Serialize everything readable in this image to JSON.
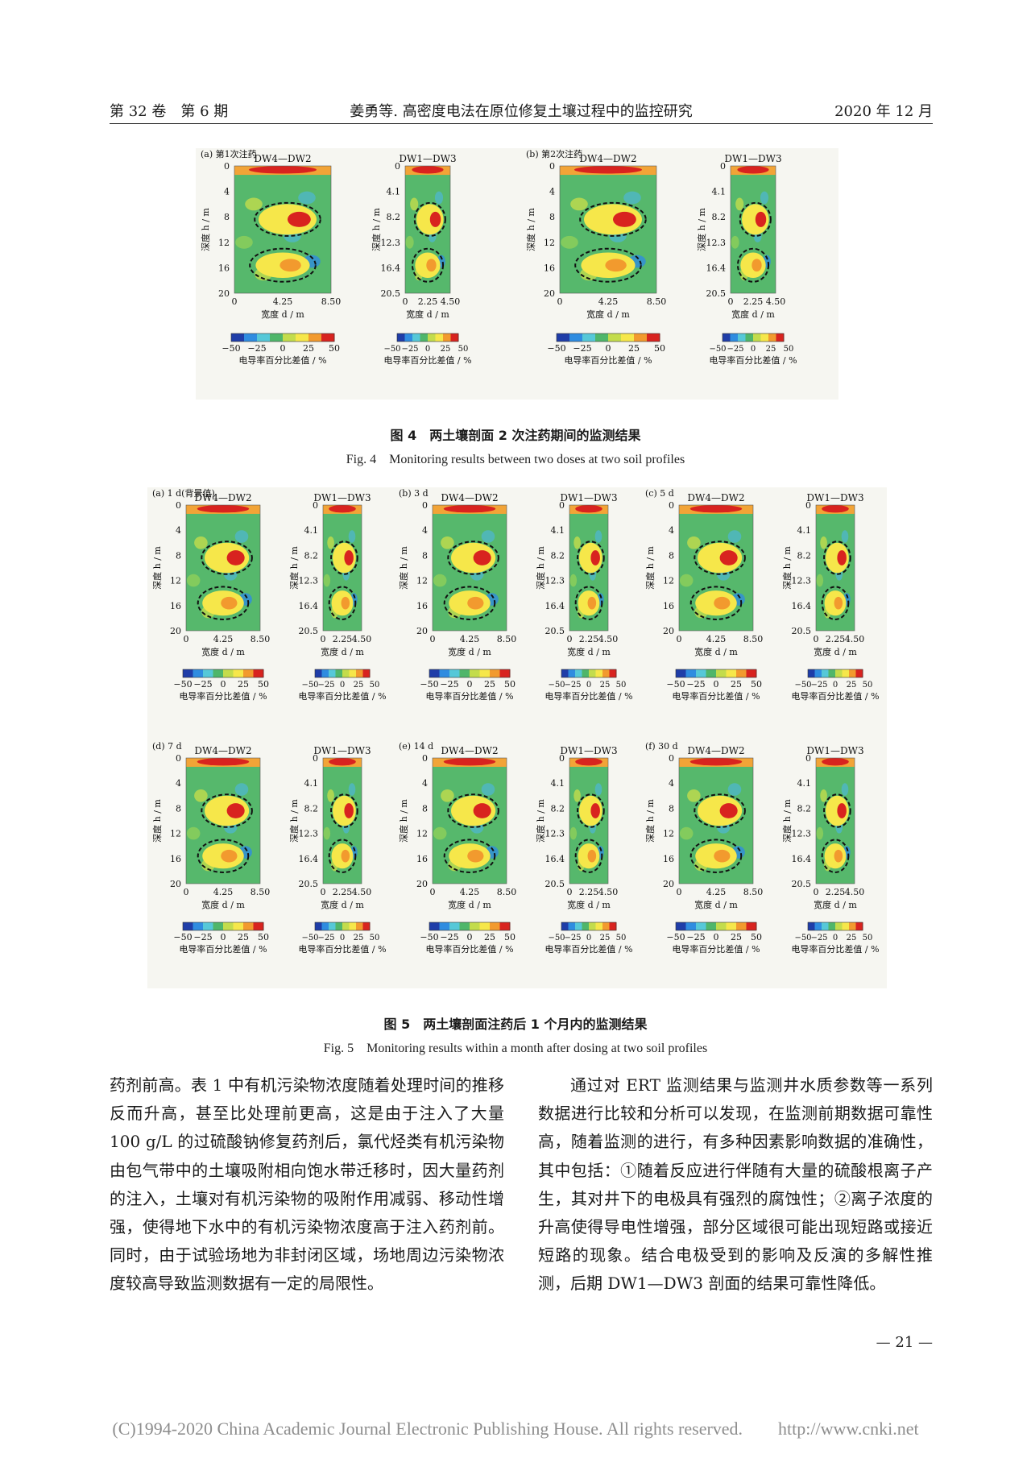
{
  "header": {
    "left": "第 32 卷　第 6 期",
    "center": "姜勇等. 高密度电法在原位修复土壤过程中的监控研究",
    "right": "2020 年 12 月"
  },
  "fig4": {
    "caption_zh": "图 4　两土壤剖面 2 次注药期间的监测结果",
    "caption_en": "Fig. 4　Monitoring results between two doses at two soil profiles",
    "groups": [
      {
        "label": "(a) 第1次注药"
      },
      {
        "label": "(b) 第2次注药"
      }
    ]
  },
  "fig5": {
    "caption_zh": "图 5　两土壤剖面注药后 1 个月内的监测结果",
    "caption_en": "Fig. 5　Monitoring results within a month after dosing at two soil profiles",
    "groups": [
      {
        "label": "(a) 1 d(背景值)"
      },
      {
        "label": "(b) 3 d"
      },
      {
        "label": "(c) 5 d"
      },
      {
        "label": "(d) 7 d"
      },
      {
        "label": "(e) 14 d"
      },
      {
        "label": "(f) 30 d"
      }
    ]
  },
  "panel_text": {
    "title_a": "DW4—DW2",
    "title_b": "DW1—DW3",
    "ylabel": "深度 h / m",
    "xlabel": "宽度 d / m",
    "cbar_label": "电导率百分比差值 / %",
    "yticks_a": [
      "0",
      "4",
      "8",
      "12",
      "16",
      "20"
    ],
    "yticks_b": [
      "0",
      "4.1",
      "8.2",
      "12.3",
      "16.4",
      "20.5"
    ],
    "xticks_a": [
      "0",
      "4.25",
      "8.50"
    ],
    "xticks_b": [
      "0",
      "2.25",
      "4.50"
    ],
    "cticks": [
      "−50",
      "−25",
      "0",
      "25",
      "50"
    ]
  },
  "colors": {
    "cmap": [
      "#1f3da8",
      "#2f8ce0",
      "#56c8d8",
      "#4fb66a",
      "#c3dc4c",
      "#f6e74a",
      "#f29a2e",
      "#d8231f"
    ]
  },
  "body": {
    "left_column": "药剂前高。表 1 中有机污染物浓度随着处理时间的推移反而升高，甚至比处理前更高，这是由于注入了大量 100 g/L 的过硫酸钠修复药剂后，氯代烃类有机污染物由包气带中的土壤吸附相向饱水带迁移时，因大量药剂的注入，土壤对有机污染物的吸附作用减弱、移动性增强，使得地下水中的有机污染物浓度高于注入药剂前。同时，由于试验场地为非封闭区域，场地周边污染物浓度较高导致监测数据有一定的局限性。",
    "right_column": "通过对 ERT 监测结果与监测井水质参数等一系列数据进行比较和分析可以发现，在监测前期数据可靠性高，随着监测的进行，有多种因素影响数据的准确性，其中包括：①随着反应进行伴随有大量的硫酸根离子产生，其对井下的电极具有强烈的腐蚀性；②离子浓度的升高使得导电性增强，部分区域很可能出现短路或接近短路的现象。结合电极受到的影响及反演的多解性推测，后期 DW1—DW3 剖面的结果可靠性降低。"
  },
  "page_number": "— 21 —",
  "copyright": "(C)1994-2020 China Academic Journal Electronic Publishing House. All rights reserved.　　http://www.cnki.net"
}
